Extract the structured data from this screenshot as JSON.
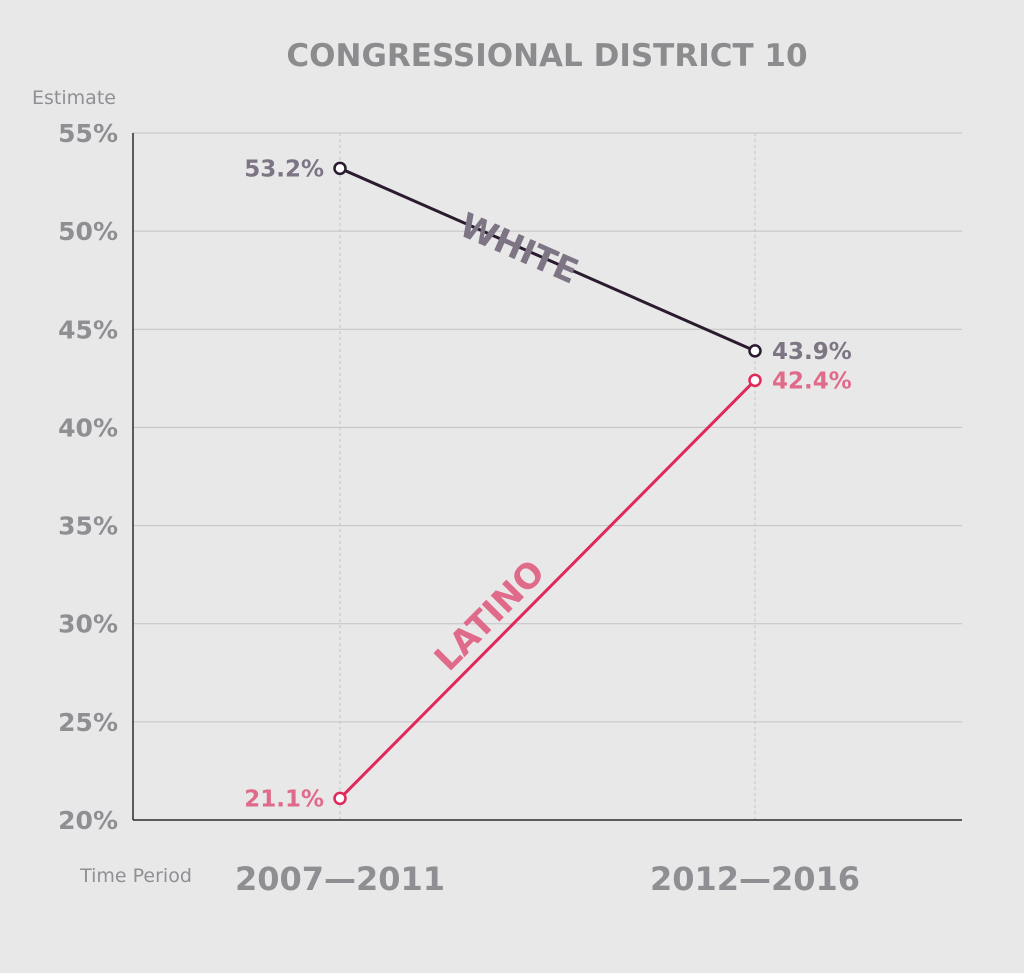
{
  "chart_data": {
    "type": "line",
    "title": "CONGRESSIONAL DISTRICT 10",
    "ylabel": "Estimate",
    "xlabel": "Time Period",
    "categories": [
      "2007—2011",
      "2012—2016"
    ],
    "ylim": [
      20,
      55
    ],
    "yticks": [
      20,
      25,
      30,
      35,
      40,
      45,
      50,
      55
    ],
    "ytick_labels": [
      "20%",
      "25%",
      "30%",
      "35%",
      "40%",
      "45%",
      "50%",
      "55%"
    ],
    "grid": true,
    "series": [
      {
        "name": "WHITE",
        "values": [
          53.2,
          43.9
        ],
        "value_labels": [
          "53.2%",
          "43.9%"
        ],
        "color": "#2a1b2e",
        "label_color": "#7d7484"
      },
      {
        "name": "LATINO",
        "values": [
          21.1,
          42.4
        ],
        "value_labels": [
          "21.1%",
          "42.4%"
        ],
        "color": "#e0285a",
        "label_color": "#e06a8a"
      }
    ]
  }
}
